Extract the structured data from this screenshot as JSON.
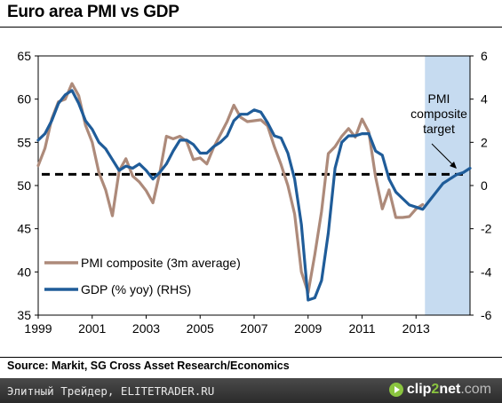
{
  "title": "Euro area PMI vs GDP",
  "source": "Source: Markit, SG Cross Asset Research/Economics",
  "footer": {
    "text": "Элитный Трейдер, ELITETRADER.RU",
    "logo_a": "clip",
    "logo_b": "2",
    "logo_c": "net",
    "logo_d": ".com"
  },
  "chart_data": {
    "type": "line",
    "x_ticks": [
      "1999",
      "2001",
      "2003",
      "2005",
      "2007",
      "2009",
      "2011",
      "2013"
    ],
    "y_left": {
      "ticks": [
        "35",
        "40",
        "45",
        "50",
        "55",
        "60",
        "65"
      ],
      "range": [
        35,
        65
      ]
    },
    "y_right": {
      "ticks": [
        "-6",
        "-4",
        "-2",
        "0",
        "2",
        "4",
        "6"
      ],
      "range": [
        -6,
        6
      ]
    },
    "x_range": [
      1999,
      2015.0
    ],
    "shaded_region": {
      "from": 2013.33,
      "to": 2015.0,
      "color": "#c6dbf0"
    },
    "target_line": {
      "value": 51.3,
      "axis": "left",
      "style": "dashed",
      "color": "#000000"
    },
    "annotation": {
      "lines": [
        "PMI",
        "composite",
        "target"
      ]
    },
    "series": [
      {
        "name": "PMI composite (3m average)",
        "axis": "left",
        "color": "#ad8a7a",
        "points": [
          [
            1999.0,
            52.3
          ],
          [
            1999.25,
            54.3
          ],
          [
            1999.5,
            57.7
          ],
          [
            1999.75,
            59.7
          ],
          [
            2000.0,
            60.0
          ],
          [
            2000.25,
            61.8
          ],
          [
            2000.5,
            60.4
          ],
          [
            2000.75,
            57.0
          ],
          [
            2001.0,
            55.0
          ],
          [
            2001.25,
            51.5
          ],
          [
            2001.5,
            49.5
          ],
          [
            2001.75,
            46.5
          ],
          [
            2002.0,
            51.7
          ],
          [
            2002.25,
            53.1
          ],
          [
            2002.5,
            51.1
          ],
          [
            2002.75,
            50.4
          ],
          [
            2003.0,
            49.4
          ],
          [
            2003.25,
            48.0
          ],
          [
            2003.5,
            51.4
          ],
          [
            2003.75,
            55.7
          ],
          [
            2004.0,
            55.4
          ],
          [
            2004.25,
            55.7
          ],
          [
            2004.5,
            55.1
          ],
          [
            2004.75,
            53.0
          ],
          [
            2005.0,
            53.2
          ],
          [
            2005.25,
            52.5
          ],
          [
            2005.5,
            54.4
          ],
          [
            2005.75,
            55.9
          ],
          [
            2006.0,
            57.4
          ],
          [
            2006.25,
            59.3
          ],
          [
            2006.5,
            57.9
          ],
          [
            2006.75,
            57.4
          ],
          [
            2007.0,
            57.5
          ],
          [
            2007.25,
            57.6
          ],
          [
            2007.5,
            56.9
          ],
          [
            2007.75,
            54.5
          ],
          [
            2008.0,
            52.4
          ],
          [
            2008.25,
            50.0
          ],
          [
            2008.5,
            46.7
          ],
          [
            2008.75,
            40.0
          ],
          [
            2009.0,
            37.6
          ],
          [
            2009.25,
            42.0
          ],
          [
            2009.5,
            47.0
          ],
          [
            2009.75,
            53.7
          ],
          [
            2010.0,
            54.5
          ],
          [
            2010.25,
            55.7
          ],
          [
            2010.5,
            56.6
          ],
          [
            2010.75,
            55.6
          ],
          [
            2011.0,
            57.7
          ],
          [
            2011.25,
            56.2
          ],
          [
            2011.5,
            51.0
          ],
          [
            2011.75,
            47.3
          ],
          [
            2012.0,
            49.5
          ],
          [
            2012.25,
            46.3
          ],
          [
            2012.5,
            46.3
          ],
          [
            2012.75,
            46.4
          ],
          [
            2013.0,
            47.3
          ],
          [
            2013.25,
            47.8
          ]
        ]
      },
      {
        "name": "GDP (% yoy) (RHS)",
        "axis": "right",
        "color": "#1f5c99",
        "points": [
          [
            1999.0,
            2.1
          ],
          [
            1999.25,
            2.4
          ],
          [
            1999.5,
            3.0
          ],
          [
            1999.75,
            3.8
          ],
          [
            2000.0,
            4.2
          ],
          [
            2000.25,
            4.4
          ],
          [
            2000.5,
            3.8
          ],
          [
            2000.75,
            3.0
          ],
          [
            2001.0,
            2.6
          ],
          [
            2001.25,
            2.0
          ],
          [
            2001.5,
            1.7
          ],
          [
            2001.75,
            1.2
          ],
          [
            2002.0,
            0.7
          ],
          [
            2002.25,
            0.9
          ],
          [
            2002.5,
            0.8
          ],
          [
            2002.75,
            1.0
          ],
          [
            2003.0,
            0.7
          ],
          [
            2003.25,
            0.3
          ],
          [
            2003.5,
            0.6
          ],
          [
            2003.75,
            1.0
          ],
          [
            2004.0,
            1.6
          ],
          [
            2004.25,
            2.1
          ],
          [
            2004.5,
            2.1
          ],
          [
            2004.75,
            1.9
          ],
          [
            2005.0,
            1.5
          ],
          [
            2005.25,
            1.5
          ],
          [
            2005.5,
            1.8
          ],
          [
            2005.75,
            2.0
          ],
          [
            2006.0,
            2.3
          ],
          [
            2006.25,
            3.0
          ],
          [
            2006.5,
            3.3
          ],
          [
            2006.75,
            3.3
          ],
          [
            2007.0,
            3.5
          ],
          [
            2007.25,
            3.4
          ],
          [
            2007.5,
            2.9
          ],
          [
            2007.75,
            2.3
          ],
          [
            2008.0,
            2.2
          ],
          [
            2008.25,
            1.5
          ],
          [
            2008.5,
            0.3
          ],
          [
            2008.75,
            -1.8
          ],
          [
            2009.0,
            -5.3
          ],
          [
            2009.25,
            -5.2
          ],
          [
            2009.5,
            -4.4
          ],
          [
            2009.75,
            -2.2
          ],
          [
            2010.0,
            0.8
          ],
          [
            2010.25,
            2.0
          ],
          [
            2010.5,
            2.3
          ],
          [
            2010.75,
            2.3
          ],
          [
            2011.0,
            2.4
          ],
          [
            2011.25,
            2.4
          ],
          [
            2011.5,
            1.6
          ],
          [
            2011.75,
            1.4
          ],
          [
            2012.0,
            0.3
          ],
          [
            2012.25,
            -0.3
          ],
          [
            2012.5,
            -0.6
          ],
          [
            2012.75,
            -0.9
          ],
          [
            2013.0,
            -1.0
          ],
          [
            2013.25,
            -1.1
          ],
          [
            2013.5,
            -0.7
          ],
          [
            2013.75,
            -0.3
          ],
          [
            2014.0,
            0.1
          ],
          [
            2014.25,
            0.3
          ],
          [
            2014.5,
            0.5
          ],
          [
            2014.75,
            0.6
          ],
          [
            2015.0,
            0.8
          ]
        ]
      }
    ]
  }
}
